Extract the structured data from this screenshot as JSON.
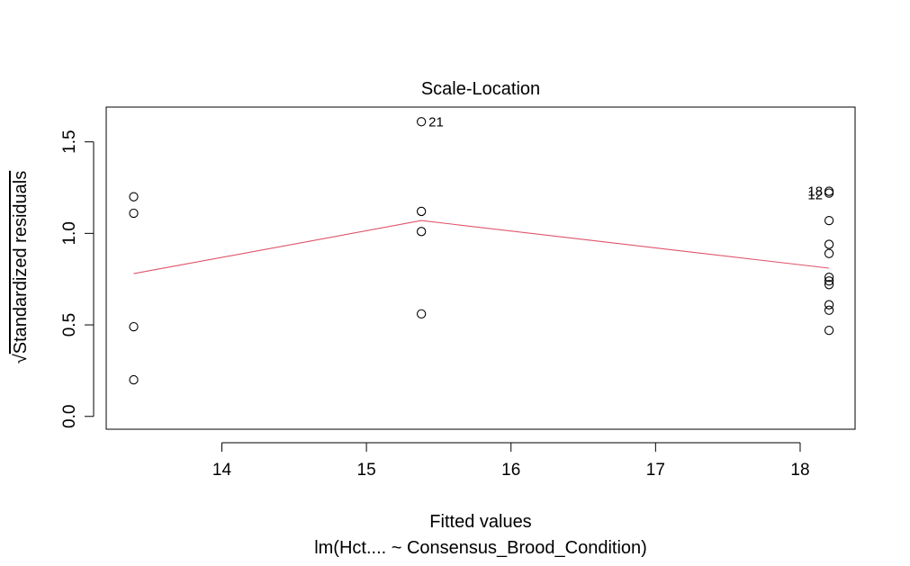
{
  "chart_data": {
    "type": "scatter",
    "title": "Scale-Location",
    "xlabel": "Fitted values",
    "ylabel": "Standardized residuals",
    "ylabel_prefix": "√",
    "caption": "lm(Hct.... ~ Consensus_Brood_Condition)",
    "xlim": [
      13.2,
      18.38
    ],
    "ylim": [
      -0.07,
      1.69
    ],
    "xticks": [
      14,
      15,
      16,
      17,
      18
    ],
    "yticks": [
      0.0,
      0.5,
      1.0,
      1.5
    ],
    "xtick_labels": [
      "14",
      "15",
      "16",
      "17",
      "18"
    ],
    "ytick_labels": [
      "0.0",
      "0.5",
      "1.0",
      "1.5"
    ],
    "grid": false,
    "points": [
      {
        "x": 13.39,
        "y": 1.2
      },
      {
        "x": 13.39,
        "y": 1.11
      },
      {
        "x": 13.39,
        "y": 0.49
      },
      {
        "x": 13.39,
        "y": 0.2
      },
      {
        "x": 15.38,
        "y": 1.61
      },
      {
        "x": 15.38,
        "y": 1.12
      },
      {
        "x": 15.38,
        "y": 1.01
      },
      {
        "x": 15.38,
        "y": 0.56
      },
      {
        "x": 18.2,
        "y": 1.23
      },
      {
        "x": 18.2,
        "y": 1.22
      },
      {
        "x": 18.2,
        "y": 1.07
      },
      {
        "x": 18.2,
        "y": 0.94
      },
      {
        "x": 18.2,
        "y": 0.89
      },
      {
        "x": 18.2,
        "y": 0.76
      },
      {
        "x": 18.2,
        "y": 0.74
      },
      {
        "x": 18.2,
        "y": 0.72
      },
      {
        "x": 18.2,
        "y": 0.61
      },
      {
        "x": 18.2,
        "y": 0.58
      },
      {
        "x": 18.2,
        "y": 0.47
      }
    ],
    "point_labels": [
      {
        "text": "21",
        "x": 15.38,
        "y": 1.61,
        "side": "right"
      },
      {
        "text": "18",
        "x": 18.2,
        "y": 1.23,
        "side": "left"
      },
      {
        "text": "12",
        "x": 18.2,
        "y": 1.21,
        "side": "left"
      }
    ],
    "smoother": {
      "color": "#DF536B",
      "x": [
        13.39,
        15.38,
        18.2
      ],
      "y": [
        0.78,
        1.07,
        0.81
      ]
    }
  }
}
